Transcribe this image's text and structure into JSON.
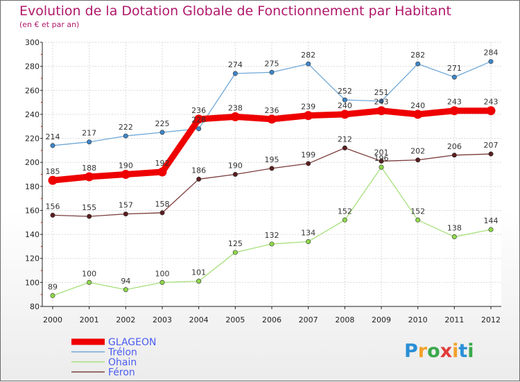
{
  "header": {
    "title": "Evolution de la Dotation Globale de Fonctionnement par Habitant",
    "subtitle": "(en € et par an)"
  },
  "brand": {
    "letters": [
      "P",
      "r",
      "o",
      "x",
      "i",
      "t",
      "i"
    ],
    "colors": [
      "#2a8fd6",
      "#f2a12b",
      "#3aa84a",
      "#e23b3b",
      "#f2a12b",
      "#2a8fd6",
      "#3aa84a"
    ]
  },
  "chart_data": {
    "type": "line",
    "x": [
      2000,
      2001,
      2002,
      2003,
      2004,
      2005,
      2006,
      2007,
      2008,
      2009,
      2010,
      2011,
      2012
    ],
    "ylim": [
      80,
      300
    ],
    "yticks": [
      80,
      100,
      120,
      140,
      160,
      180,
      200,
      220,
      240,
      260,
      280,
      300
    ],
    "grid": true,
    "legend_position": "bottom-left",
    "series": [
      {
        "name": "GLAGEON",
        "color": "#ee0000",
        "values": [
          185,
          188,
          190,
          192,
          236,
          238,
          236,
          239,
          240,
          243,
          240,
          243,
          243
        ]
      },
      {
        "name": "Trélon",
        "color": "#6fa8d8",
        "values": [
          214,
          217,
          222,
          225,
          228,
          274,
          275,
          282,
          252,
          251,
          282,
          271,
          284
        ],
        "labels": [
          "214",
          "217",
          "222",
          "225",
          "228",
          "274",
          "275",
          "282",
          "252",
          "251",
          "282",
          "271",
          "284"
        ]
      },
      {
        "name": "Ohain",
        "color": "#a6e07a",
        "values": [
          89,
          100,
          94,
          100,
          101,
          125,
          132,
          134,
          152,
          196,
          152,
          138,
          144
        ],
        "labels": [
          "89",
          "100",
          "94",
          "100",
          "101",
          "125",
          "132",
          "134",
          "152",
          "196",
          "152",
          "138",
          "144"
        ]
      },
      {
        "name": "Féron",
        "color": "#7a3a3a",
        "values": [
          156,
          155,
          157,
          158,
          186,
          190,
          195,
          199,
          212,
          201,
          202,
          206,
          207
        ],
        "labels": [
          "156",
          "155",
          "157",
          "158",
          "186",
          "190",
          "195",
          "199",
          "212",
          "201",
          "202",
          "206",
          "207"
        ]
      }
    ],
    "glageon_labels": [
      "185",
      "188",
      "190",
      "192",
      "236",
      "238",
      "236",
      "239",
      "240",
      "243",
      "240",
      "243",
      "243"
    ]
  }
}
